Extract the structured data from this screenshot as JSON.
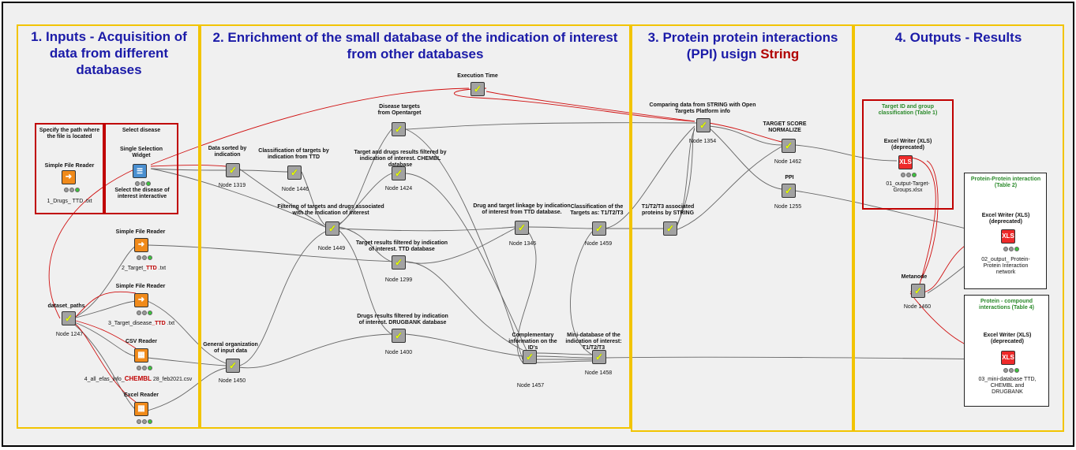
{
  "panels": {
    "inputs": "1. Inputs - Acquisition of data from different databases",
    "enrichment": "2. Enrichment of the small database of the indication of interest from other databases",
    "ppi_prefix": "3. Protein protein interactions (PPI) usign",
    "ppi_suffix": "String",
    "outputs": "4. Outputs - Results"
  },
  "boxes": {
    "specify_path": "Specify the path where the file is located",
    "select_disease": "Select disease",
    "target_groups_title": "Target ID and group classification (Table 1)",
    "ppi_table_title": "Protein-Protein interaction (Table 2)",
    "compound_table_title": "Protein - compound interactions (Table 4)"
  },
  "nodes": {
    "simple_reader_1": {
      "name": "Simple File Reader",
      "file": "1_Drugs_ TTD .txt"
    },
    "single_selection": {
      "name": "Single Selection Widget",
      "desc": "Select the disease of interest interactive"
    },
    "simple_reader_2": {
      "name": "Simple File Reader",
      "file_a": "2_Target_",
      "file_b": "TTD",
      "file_c": " .txt"
    },
    "simple_reader_3": {
      "name": "Simple File Reader",
      "file_a": "3_Target_disease",
      "file_b": "_TTD",
      "file_c": " .txt"
    },
    "dataset_paths": {
      "name": "dataset_paths",
      "id": "Node 1247"
    },
    "csv_reader": {
      "name": "CSV Reader",
      "file_a": "4_all_efas_info_",
      "file_b": "CHEMBL",
      "file_c": " 28_feb2021.csv"
    },
    "excel_reader": {
      "name": "Excel Reader"
    },
    "data_sorted": {
      "name": "Data sorted by indication",
      "id": "Node 1319"
    },
    "classification_ttd": {
      "name": "Classification of targets by indication  from TTD",
      "id": "Node 1446"
    },
    "general_org": {
      "name": "General organization of input data",
      "id": "Node 1450"
    },
    "filter_targets_drugs": {
      "name": "Filtering of targets and drugs associated with the indication of interest",
      "id": "Node 1449"
    },
    "disease_targets": {
      "name": "Disease targets from Opentarget"
    },
    "chembl_filter": {
      "name": "Target and drugs results filtered by indication of interest. CHEMBL database",
      "id": "Node 1424"
    },
    "ttd_filter": {
      "name": "Target results filtered by indication of interest. TTD database",
      "id": "Node 1299"
    },
    "drugbank_filter": {
      "name": "Drugs results filtered by indication of interest. DRUGBANK database",
      "id": "Node 1400"
    },
    "execution_time": {
      "name": "Execution Time"
    },
    "linkage": {
      "name": "Drug and target linkage by indication of interest from TTD database.",
      "id": "Node 1346"
    },
    "complementary": {
      "name": "Complementary information on the ID's",
      "id": "Node 1457"
    },
    "classification_t123": {
      "name": "Classification of the Targets as: T1/T2/T3",
      "id": "Node 1459"
    },
    "mini_database": {
      "name": "Mini-database of the indication of interest: T1/T2/T3",
      "id": "Node 1458"
    },
    "comparing": {
      "name": "Comparing data from STRING with Open Targets Platform info",
      "id": "Node 1354"
    },
    "t123_string": {
      "name": "T1/T2/T3 associated proteins by STRING"
    },
    "target_score": {
      "name": "TARGET SCORE NORMALIZE",
      "id": "Node 1462"
    },
    "ppi": {
      "name": "PPI",
      "id": "Node 1255"
    },
    "excel_writer_1": {
      "name": "Excel Writer (XLS) (deprecated)",
      "file": "01_output-Target-Groups.xlsx"
    },
    "excel_writer_2": {
      "name": "Excel Writer (XLS) (deprecated)",
      "file": "02_output_ Protein-Protein Interaction network"
    },
    "excel_writer_3": {
      "name": "Excel Writer (XLS) (deprecated)",
      "file": "03_mini-database TTD, CHEMBL and DRUGBANK"
    },
    "metanode": {
      "name": "Metanode",
      "id": "Node 1460"
    }
  },
  "colors": {
    "panel_border": "#f2c400",
    "title": "#1b1ba8",
    "box_border": "#c00000",
    "wire": "#555555",
    "wire_red": "#d01010"
  }
}
